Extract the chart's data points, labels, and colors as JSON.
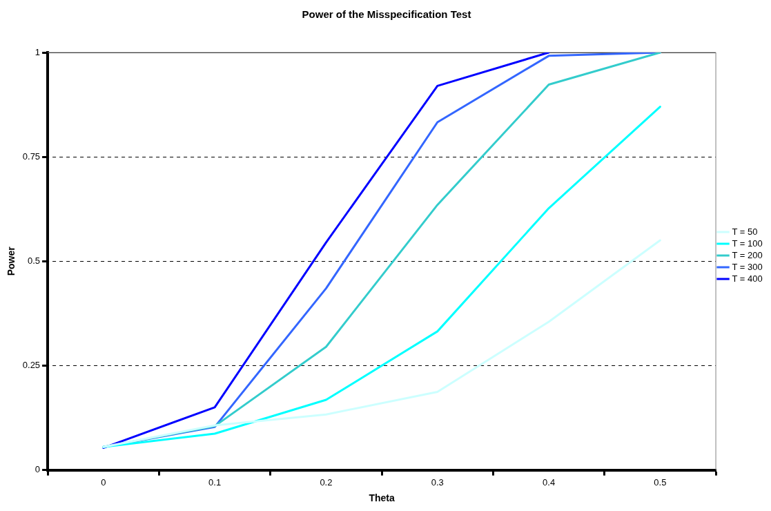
{
  "chart_data": {
    "type": "line",
    "title": "Power of the Misspecification Test",
    "xlabel": "Theta",
    "ylabel": "Power",
    "categories": [
      "0",
      "0.1",
      "0.2",
      "0.3",
      "0.4",
      "0.5"
    ],
    "series": [
      {
        "name": "T = 50",
        "color": "#ccffff",
        "values": [
          0.055,
          0.107,
          0.133,
          0.187,
          0.355,
          0.55
        ]
      },
      {
        "name": "T = 100",
        "color": "#00ffff",
        "values": [
          0.055,
          0.087,
          0.168,
          0.332,
          0.627,
          0.87
        ]
      },
      {
        "name": "T = 200",
        "color": "#33cccc",
        "values": [
          0.055,
          0.105,
          0.295,
          0.635,
          0.923,
          1.0
        ]
      },
      {
        "name": "T = 300",
        "color": "#3366ff",
        "values": [
          0.055,
          0.103,
          0.435,
          0.833,
          0.992,
          1.0
        ]
      },
      {
        "name": "T = 400",
        "color": "#0000ff",
        "values": [
          0.053,
          0.15,
          0.545,
          0.92,
          1.0,
          null
        ]
      }
    ],
    "ylim": [
      0,
      1
    ],
    "yticks": [
      0,
      0.25,
      0.5,
      0.75,
      1
    ],
    "grid": "y",
    "legend": "right",
    "marker": "none",
    "line_style": "solid"
  }
}
